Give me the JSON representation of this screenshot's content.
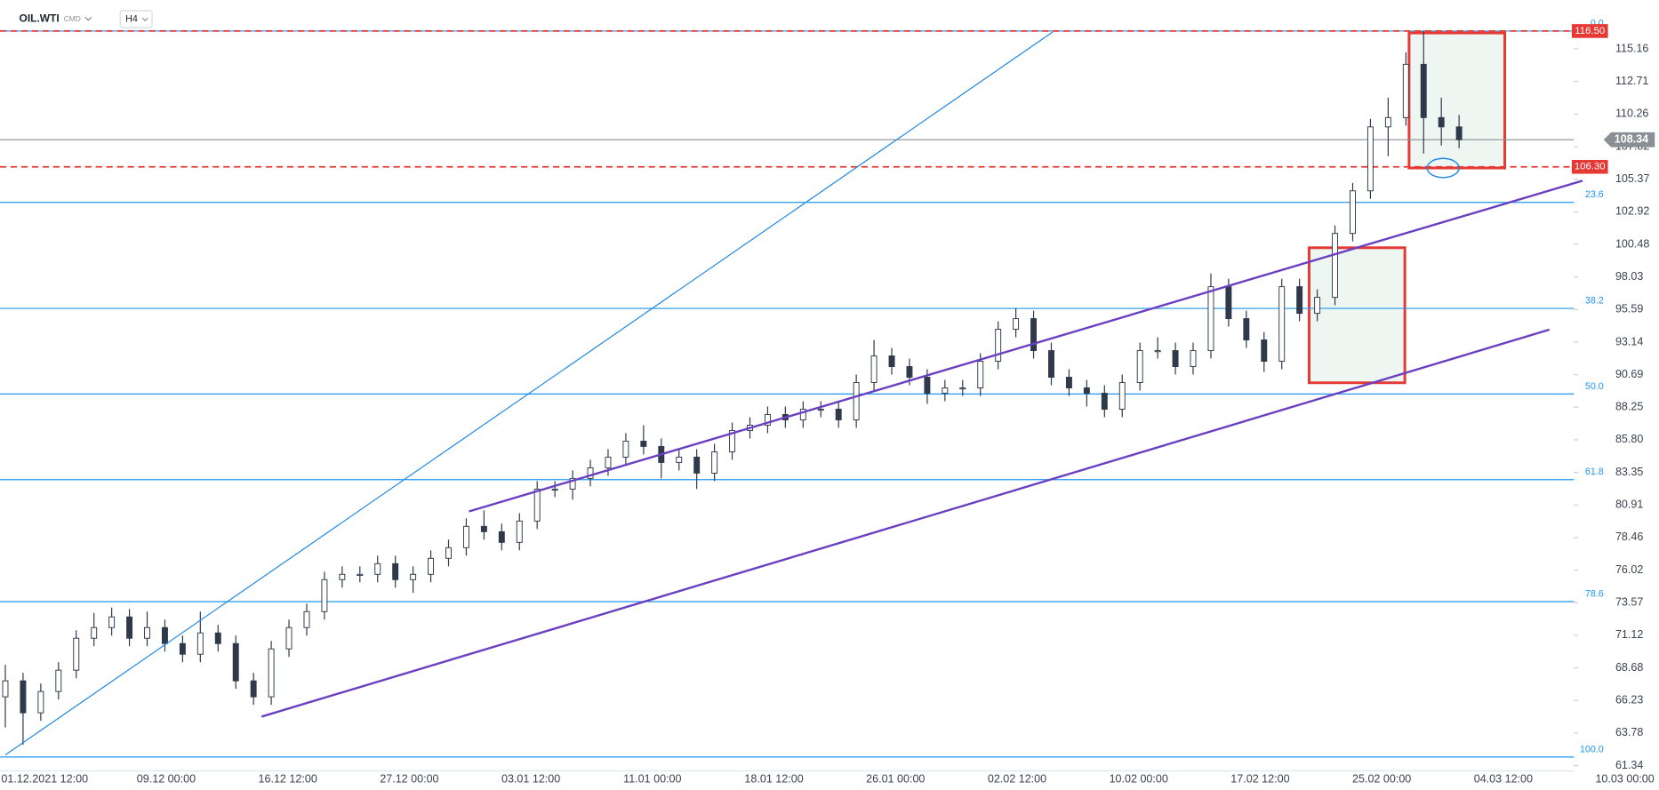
{
  "header": {
    "symbol": "OIL.WTI",
    "market": "CMD",
    "interval": "H4"
  },
  "chart_data": {
    "type": "candlestick",
    "open": [
      66.5,
      67.7,
      65.3,
      66.9,
      68.5,
      70.9,
      71.7,
      72.5,
      70.9,
      71.7,
      70.5,
      69.7,
      71.3,
      70.5,
      67.7,
      66.5,
      70.1,
      71.7,
      72.9,
      75.3,
      75.7,
      75.7,
      76.5,
      75.3,
      75.7,
      76.9,
      77.7,
      79.3,
      78.9,
      78.1,
      79.7,
      82.1,
      82.1,
      82.9,
      83.7,
      84.5,
      85.7,
      85.3,
      84.1,
      84.5,
      83.3,
      84.9,
      86.5,
      86.9,
      87.7,
      87.3,
      88.1,
      88.1,
      87.3,
      90.1,
      92.1,
      91.3,
      90.5,
      89.3,
      89.7,
      89.7,
      91.7,
      94.1,
      94.9,
      92.5,
      90.5,
      89.7,
      89.3,
      88.1,
      90.1,
      92.5,
      92.5,
      91.3,
      92.5,
      97.3,
      94.9,
      93.3,
      91.7,
      97.3,
      95.3,
      96.5,
      101.3,
      104.5,
      109.3,
      110.0,
      114.0,
      110.0,
      109.3
    ],
    "high": [
      68.9,
      68.3,
      67.5,
      69.1,
      71.5,
      72.8,
      73.2,
      73.1,
      72.9,
      72.3,
      71.1,
      72.9,
      71.9,
      71.1,
      68.3,
      70.7,
      72.3,
      73.5,
      75.9,
      76.3,
      76.3,
      77.1,
      77.1,
      76.3,
      77.5,
      78.3,
      79.9,
      80.5,
      79.5,
      80.3,
      82.7,
      82.7,
      83.5,
      84.3,
      85.1,
      86.3,
      86.9,
      85.9,
      85.1,
      85.1,
      85.5,
      87.1,
      87.5,
      88.3,
      88.3,
      88.7,
      88.7,
      88.7,
      90.7,
      93.3,
      92.7,
      91.9,
      91.1,
      90.3,
      90.3,
      92.3,
      94.7,
      95.7,
      95.5,
      93.1,
      91.1,
      90.3,
      89.9,
      90.7,
      93.1,
      93.5,
      93.1,
      93.1,
      98.3,
      97.9,
      95.5,
      93.9,
      97.9,
      97.9,
      97.1,
      101.9,
      105.1,
      109.9,
      111.5,
      114.9,
      116.5,
      111.5,
      110.2
    ],
    "low": [
      64.2,
      62.9,
      64.7,
      66.3,
      67.9,
      70.3,
      71.1,
      70.3,
      70.3,
      69.9,
      69.1,
      69.1,
      69.9,
      67.1,
      65.9,
      65.9,
      69.5,
      71.1,
      72.3,
      74.7,
      75.1,
      75.1,
      74.7,
      74.3,
      75.1,
      76.3,
      77.1,
      78.3,
      77.5,
      77.5,
      79.1,
      81.5,
      81.3,
      82.3,
      83.1,
      83.9,
      84.7,
      82.9,
      83.5,
      82.1,
      82.7,
      84.3,
      85.9,
      86.3,
      86.7,
      86.7,
      87.5,
      86.7,
      86.7,
      89.5,
      90.7,
      89.9,
      88.5,
      88.7,
      89.1,
      89.1,
      91.1,
      93.5,
      91.9,
      89.9,
      89.1,
      88.3,
      87.5,
      87.5,
      89.5,
      91.9,
      90.7,
      90.7,
      91.9,
      94.3,
      92.7,
      90.9,
      91.1,
      94.7,
      94.7,
      95.9,
      100.7,
      103.9,
      107.1,
      109.4,
      107.3,
      107.9,
      107.7
    ],
    "close": [
      67.7,
      65.3,
      66.9,
      68.5,
      70.9,
      71.7,
      72.5,
      70.9,
      71.7,
      70.5,
      69.7,
      71.3,
      70.5,
      67.7,
      66.5,
      70.1,
      71.7,
      72.9,
      75.3,
      75.7,
      75.7,
      76.5,
      75.3,
      75.7,
      76.9,
      77.7,
      79.3,
      78.9,
      78.1,
      79.7,
      82.1,
      82.1,
      82.9,
      83.7,
      84.5,
      85.7,
      85.3,
      84.1,
      84.5,
      83.3,
      84.9,
      86.5,
      86.9,
      87.7,
      87.3,
      88.1,
      88.1,
      87.3,
      90.1,
      92.1,
      91.3,
      90.5,
      89.3,
      89.7,
      89.7,
      91.7,
      94.1,
      94.9,
      92.5,
      90.5,
      89.7,
      89.3,
      88.1,
      90.1,
      92.5,
      92.5,
      91.3,
      92.5,
      97.3,
      94.9,
      93.3,
      91.7,
      97.3,
      95.3,
      96.5,
      101.3,
      104.5,
      109.3,
      110.0,
      114.0,
      110.0,
      109.3,
      108.34
    ],
    "ylim": [
      60.94,
      118.83
    ],
    "yticks": [
      115.16,
      112.71,
      110.26,
      107.82,
      105.37,
      102.92,
      100.48,
      98.03,
      95.59,
      93.14,
      90.69,
      88.25,
      {
        "value": 85.8,
        "label": "85.80"
      },
      83.35,
      80.91,
      78.46,
      76.02,
      73.57,
      71.12,
      68.68,
      66.23,
      63.78,
      61.34
    ],
    "x_labels": [
      "01.12.2021  12:00",
      "09.12  00:00",
      "16.12  12:00",
      "27.12  00:00",
      "03.01  12:00",
      "11.01  00:00",
      "18.01  12:00",
      "26.01  00:00",
      "02.02  12:00",
      "10.02  00:00",
      "17.02  12:00",
      "25.02  00:00",
      "04.03  12:00",
      "10.03  00:00"
    ],
    "fib_levels": [
      {
        "label": "0.0",
        "value": 116.5
      },
      {
        "label": "23.6",
        "value": 103.63
      },
      {
        "label": "38.2",
        "value": 95.67
      },
      {
        "label": "50.0",
        "value": 89.24
      },
      {
        "label": "61.8",
        "value": 82.81
      },
      {
        "label": "78.6",
        "value": 73.65
      },
      {
        "label": "100.0",
        "value": 61.98
      }
    ],
    "levels": [
      {
        "value": 116.5,
        "label": "116.50"
      },
      {
        "value": 106.3,
        "label": "106.30"
      }
    ],
    "last_price": 108.34,
    "colors": {
      "up": "#ffffff",
      "down": "#2e3a4b",
      "wick": "#2e3a4b",
      "fib": "#2196f3",
      "level": "#e53935",
      "last": "#8a8f96"
    }
  }
}
